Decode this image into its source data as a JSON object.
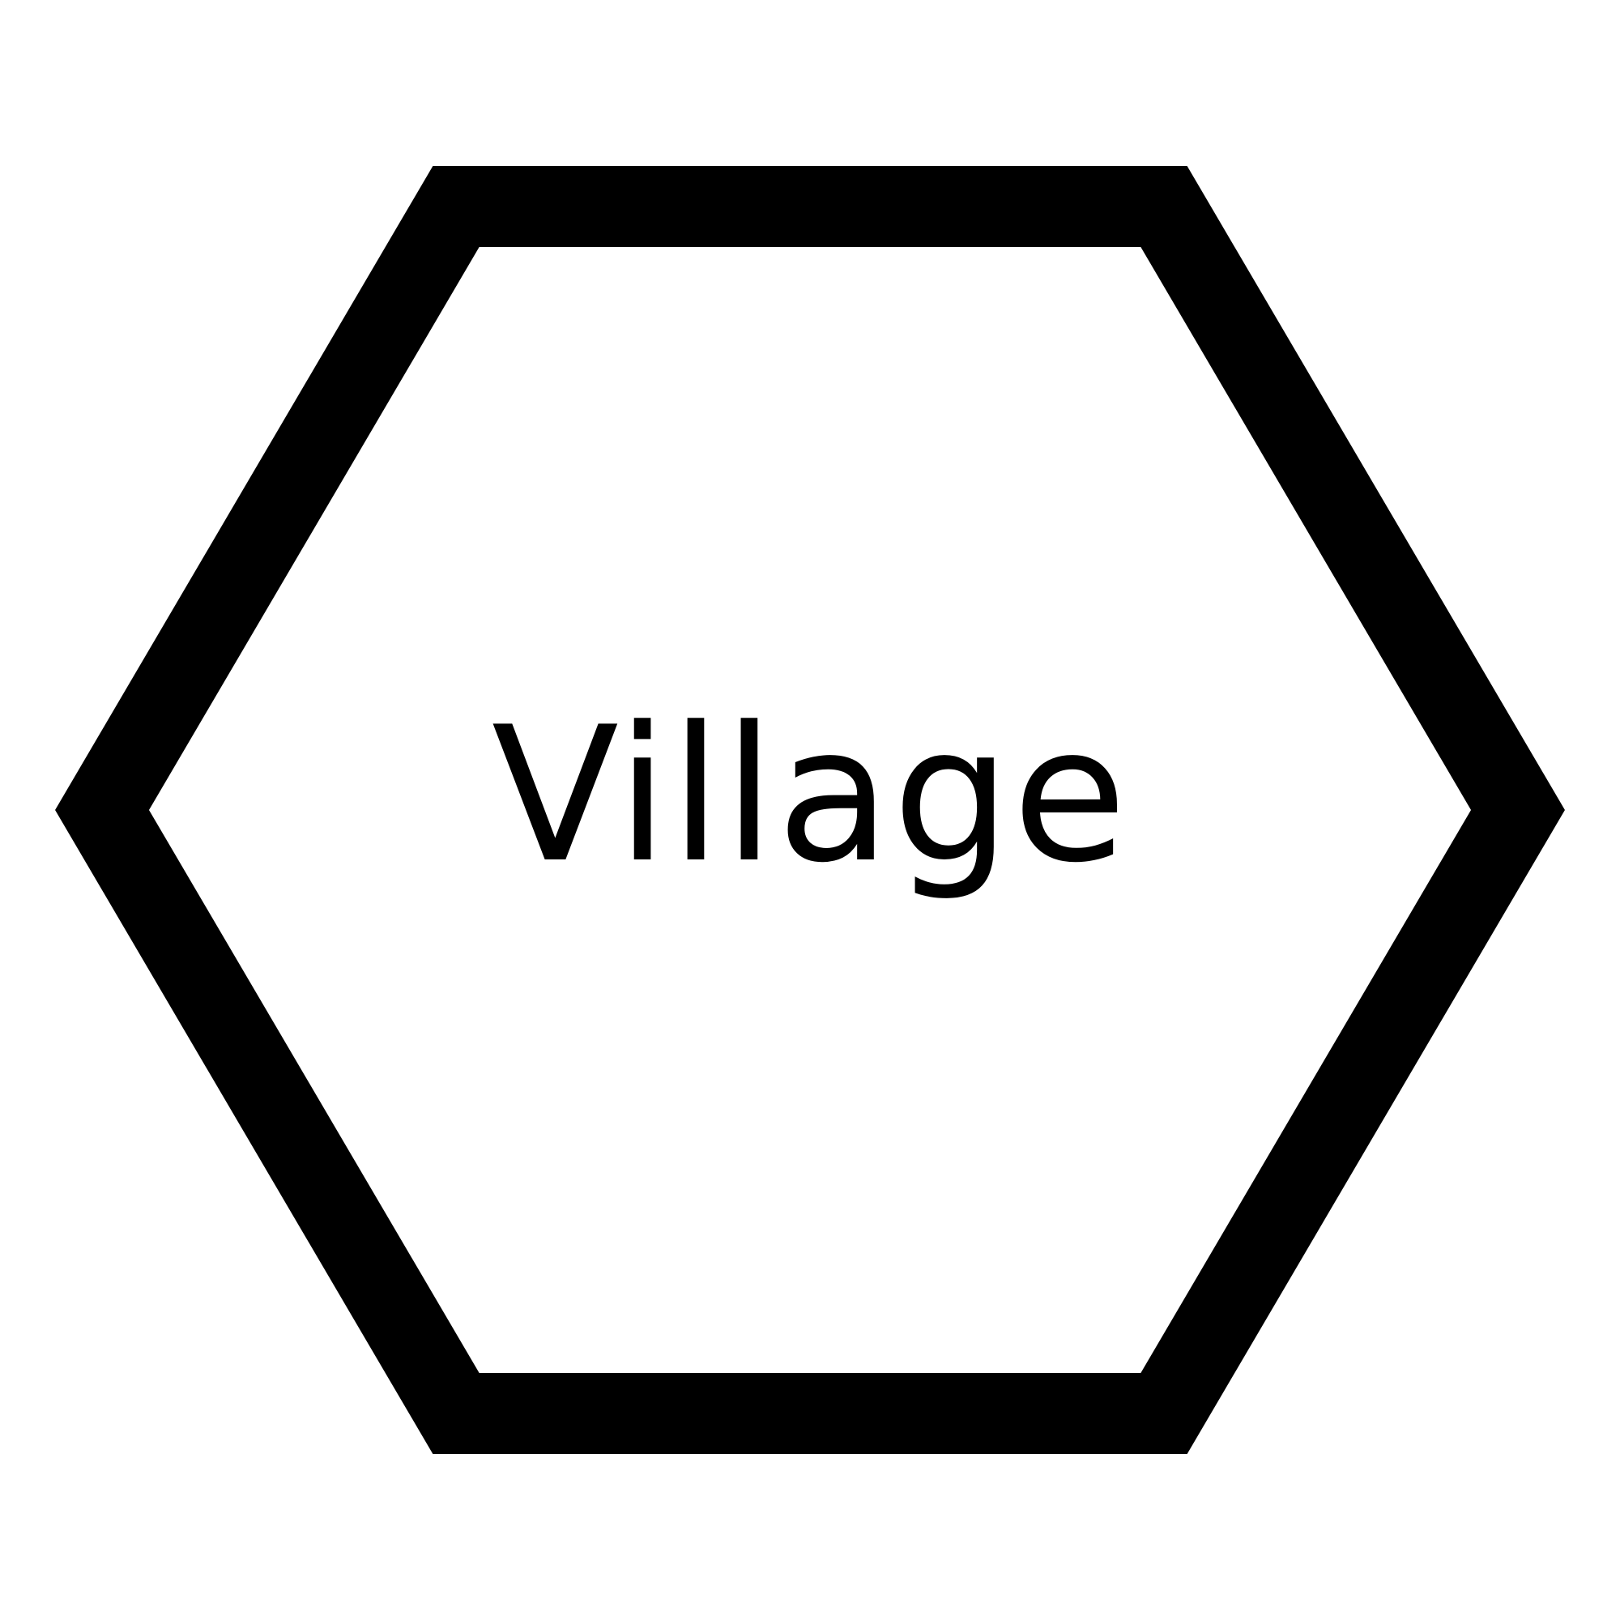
{
  "tile": {
    "label": "Village",
    "shape": "hexagon",
    "stroke_color": "#000000",
    "fill_color": "#ffffff",
    "text_color": "#000000"
  }
}
